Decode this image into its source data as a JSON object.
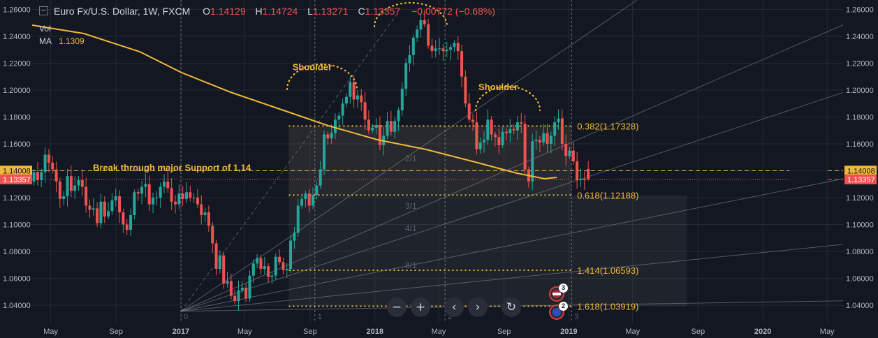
{
  "legend": {
    "symbol": "Euro Fx/U.S. Dollar, 1W, FXCM",
    "o_key": "O",
    "o_val": "1.14129",
    "h_key": "H",
    "h_val": "1.14724",
    "l_key": "L",
    "l_val": "1.13271",
    "c_key": "C",
    "c_val": "1.13357",
    "change": "−0.00772 (−0.68%)"
  },
  "indicators": {
    "vol": "Vol",
    "ma_label": "MA",
    "ma_value": "1.1309"
  },
  "toolbar": {
    "zoom_out": "−",
    "zoom_in": "+",
    "scroll_left": "‹",
    "scroll_right": "›",
    "reset": "↻"
  },
  "events": [
    {
      "flag": "us-flag-icon",
      "count": "3"
    },
    {
      "flag": "eu-flag-icon",
      "count": "2"
    }
  ],
  "colors": {
    "background": "#131722",
    "up": "#26a69a",
    "down": "#ef5350",
    "ma": "#f0b73a",
    "annotation": "#f0b73a",
    "grid": "#262a35",
    "text": "#b2b5be",
    "last_price": "#ef5350",
    "support": "#f0b73a"
  },
  "chart_data": {
    "type": "candlestick",
    "title": "Euro Fx/U.S. Dollar, 1W, FXCM",
    "ylim": [
      1.027,
      1.267
    ],
    "y_ticks": [
      "1.26000",
      "1.24000",
      "1.22000",
      "1.20000",
      "1.18000",
      "1.16000",
      "1.14000",
      "1.12000",
      "1.10000",
      "1.08000",
      "1.06000",
      "1.04000"
    ],
    "x_ticks": [
      "May",
      "Sep",
      "2017",
      "May",
      "Sep",
      "2018",
      "May",
      "Sep",
      "2019",
      "May",
      "Sep",
      "2020",
      "May"
    ],
    "x_tick_dates": [
      "2016-05-01",
      "2016-09-01",
      "2017-01-01",
      "2017-05-01",
      "2017-09-01",
      "2018-01-01",
      "2018-05-01",
      "2018-09-01",
      "2019-01-01",
      "2019-05-01",
      "2019-09-01",
      "2020-01-01",
      "2020-05-01"
    ],
    "x_range": [
      "2016-03-27",
      "2020-05-31"
    ],
    "candles": {
      "start_date": "2016-03-27",
      "interval": "1W",
      "close_series": [
        1.139,
        1.133,
        1.139,
        1.152,
        1.146,
        1.141,
        1.132,
        1.119,
        1.121,
        1.136,
        1.125,
        1.129,
        1.133,
        1.128,
        1.114,
        1.111,
        1.112,
        1.101,
        1.117,
        1.106,
        1.11,
        1.118,
        1.121,
        1.109,
        1.1,
        1.096,
        1.107,
        1.124,
        1.123,
        1.128,
        1.13,
        1.115,
        1.12,
        1.12,
        1.128,
        1.132,
        1.127,
        1.117,
        1.115,
        1.123,
        1.119,
        1.124,
        1.12,
        1.12,
        1.115,
        1.107,
        1.109,
        1.099,
        1.086,
        1.067,
        1.077,
        1.056,
        1.058,
        1.047,
        1.043,
        1.051,
        1.053,
        1.045,
        1.062,
        1.071,
        1.075,
        1.067,
        1.069,
        1.061,
        1.062,
        1.076,
        1.072,
        1.066,
        1.067,
        1.088,
        1.094,
        1.114,
        1.119,
        1.123,
        1.114,
        1.122,
        1.129,
        1.141,
        1.167,
        1.164,
        1.168,
        1.178,
        1.181,
        1.19,
        1.195,
        1.206,
        1.193,
        1.196,
        1.191,
        1.178,
        1.17,
        1.172,
        1.174,
        1.159,
        1.166,
        1.177,
        1.169,
        1.177,
        1.185,
        1.201,
        1.22,
        1.226,
        1.239,
        1.245,
        1.252,
        1.249,
        1.233,
        1.229,
        1.231,
        1.231,
        1.229,
        1.23,
        1.232,
        1.235,
        1.229,
        1.21,
        1.19,
        1.178,
        1.176,
        1.156,
        1.161,
        1.163,
        1.178,
        1.167,
        1.165,
        1.159,
        1.169,
        1.168,
        1.171,
        1.17,
        1.176,
        1.175,
        1.141,
        1.132,
        1.162,
        1.163,
        1.161,
        1.168,
        1.16,
        1.166,
        1.176,
        1.179,
        1.16,
        1.151,
        1.155,
        1.147,
        1.133,
        1.134,
        1.133,
        1.134
      ],
      "open_first": 1.132,
      "last": {
        "open": 1.14129,
        "high": 1.14724,
        "low": 1.13271,
        "close": 1.13357
      }
    },
    "moving_average": {
      "label": "MA",
      "last_value": 1.1309,
      "color": "#f0b73a"
    },
    "horizontal_lines": [
      {
        "name": "support",
        "price": 1.14008,
        "label": "1.14008",
        "style": "dashed",
        "color": "#f0b73a"
      },
      {
        "name": "last-price",
        "price": 1.13357,
        "label": "1.13357",
        "style": "dotted",
        "color": "#ef5350"
      }
    ],
    "fib_levels": [
      {
        "ratio": "0.382",
        "price": 1.17328,
        "label": "0.382(1.17328)"
      },
      {
        "ratio": "0.618",
        "price": 1.12188,
        "label": "0.618(1.12188)"
      },
      {
        "ratio": "1.414",
        "price": 1.06593,
        "label": "1.414(1.06593)"
      },
      {
        "ratio": "1.618",
        "price": 1.03919,
        "label": "1.618(1.03919)"
      }
    ],
    "fib_time_labels": [
      "0",
      "1",
      "2",
      "3"
    ],
    "fib_time_dates": [
      "2017-01-01",
      "2017-09-10",
      "2018-05-13",
      "2019-01-06"
    ],
    "gann_fan_labels": [
      "2/1",
      "3/1",
      "4/1",
      "8/1"
    ],
    "gann_fan_anchor": {
      "date": "2017-01-01",
      "price": 1.0355
    },
    "annotations": [
      {
        "text": "Shoulder",
        "date": "2017-09-10",
        "price": 1.2175
      },
      {
        "text": "Shoulder",
        "date": "2018-08-26",
        "price": 1.2025
      },
      {
        "text": "Break through major Support of 1,14",
        "date": "2016-10-02",
        "price": 1.1425
      }
    ]
  }
}
